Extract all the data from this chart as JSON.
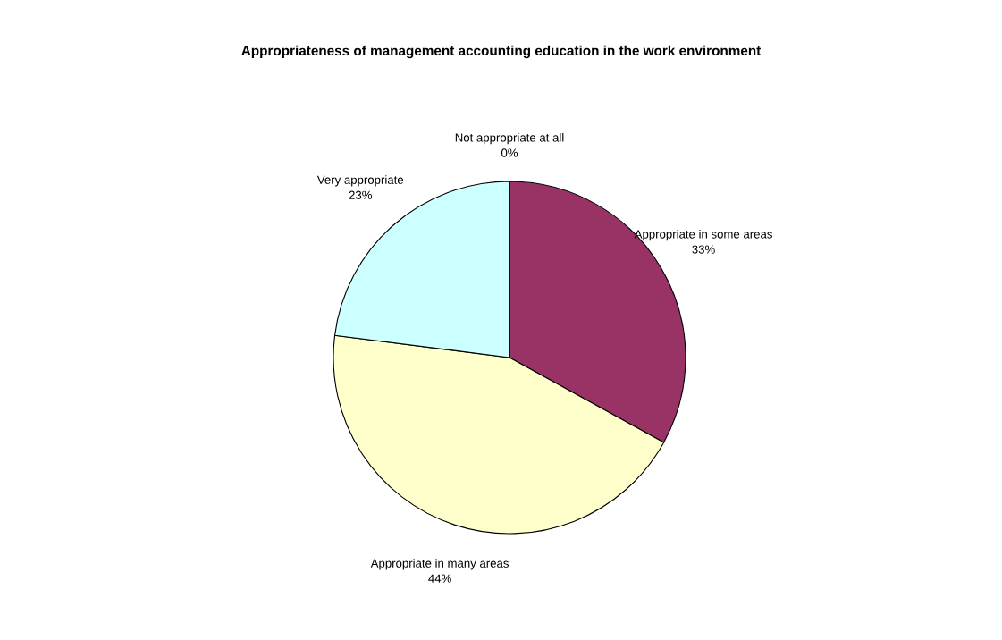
{
  "chart_data": {
    "type": "pie",
    "title": "Appropriateness of management accounting education in the work environment",
    "categories": [
      "Not appropriate at all",
      "Appropriate in some areas",
      "Appropriate in many areas",
      "Very appropriate"
    ],
    "values": [
      0,
      33,
      44,
      23
    ],
    "value_labels": [
      "0%",
      "33%",
      "44%",
      "23%"
    ],
    "colors": [
      "#9999ff",
      "#993366",
      "#ffffcc",
      "#ccffff"
    ],
    "legend": false
  }
}
